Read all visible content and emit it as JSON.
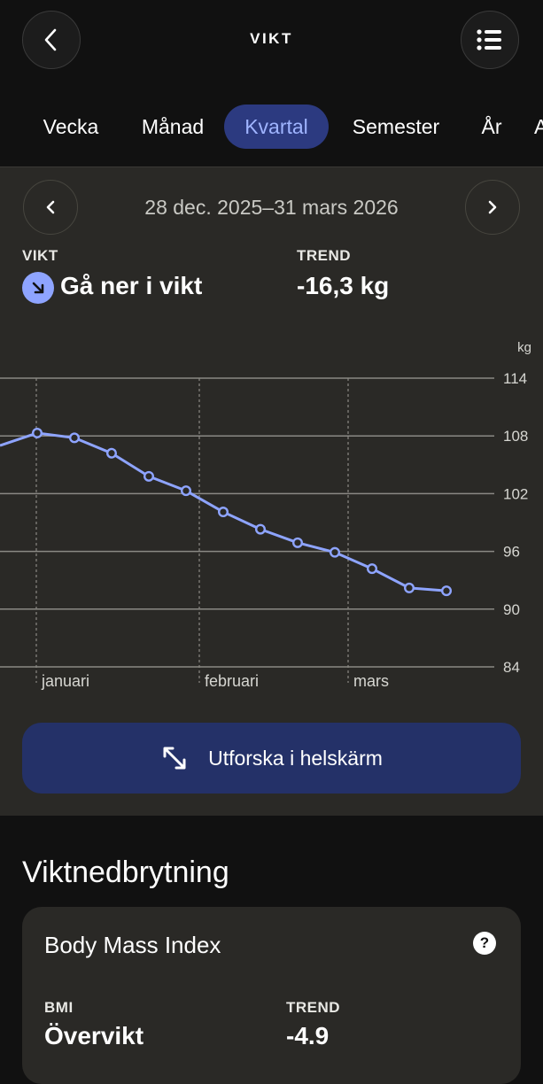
{
  "header": {
    "title": "VIKT",
    "back_icon": "chevron-left-icon",
    "menu_icon": "list-icon"
  },
  "tabs": [
    {
      "label": "Vecka",
      "active": false
    },
    {
      "label": "Månad",
      "active": false
    },
    {
      "label": "Kvartal",
      "active": true
    },
    {
      "label": "Semester",
      "active": false
    },
    {
      "label": "År",
      "active": false
    },
    {
      "label": "A",
      "active": false
    }
  ],
  "period": {
    "date_range": "28 dec. 2025–31 mars 2026"
  },
  "summary": {
    "weight_label": "VIKT",
    "weight_value": "Gå ner i vikt",
    "trend_label": "TREND",
    "trend_value": "-16,3 kg"
  },
  "chart_data": {
    "type": "line",
    "y_unit": "kg",
    "y_ticks": [
      "114",
      "108",
      "102",
      "96",
      "90",
      "84"
    ],
    "ylim": [
      84,
      114
    ],
    "x_ticks": [
      "januari",
      "februari",
      "mars"
    ],
    "points": [
      107.0,
      108.3,
      107.8,
      106.2,
      103.8,
      102.3,
      100.1,
      98.3,
      96.9,
      95.9,
      94.2,
      92.2,
      91.9
    ],
    "colors": {
      "line": "#8ea4ff",
      "grid": "#8a8984"
    },
    "grid": true
  },
  "cta": {
    "label": "Utforska i helskärm",
    "icon": "expand-arrows-icon"
  },
  "breakdown": {
    "title": "Viktnedbrytning",
    "card_title": "Body Mass Index",
    "bmi_label": "BMI",
    "bmi_value": "Övervikt",
    "trend_label": "TREND",
    "trend_value": "-4.9"
  }
}
